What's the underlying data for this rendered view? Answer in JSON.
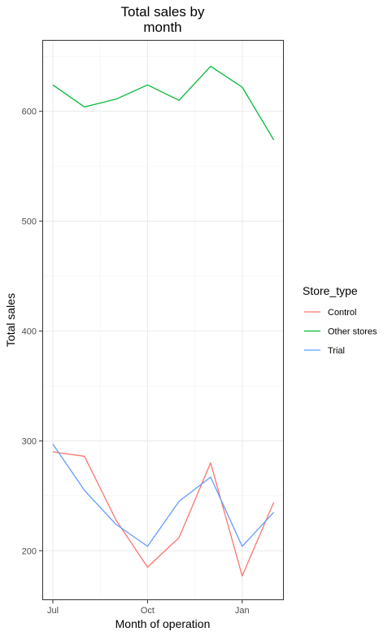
{
  "chart_data": {
    "type": "line",
    "title": [
      "Total sales by",
      "month"
    ],
    "xlabel": "Month of operation",
    "ylabel": "Total sales",
    "x": [
      "2018-07",
      "2018-08",
      "2018-09",
      "2018-10",
      "2018-11",
      "2018-12",
      "2019-01",
      "2019-02"
    ],
    "x_ticks": [
      {
        "label": "Jul",
        "value": "2018-07"
      },
      {
        "label": "Oct",
        "value": "2018-10"
      },
      {
        "label": "Jan",
        "value": "2019-01"
      }
    ],
    "y_ticks": [
      200,
      300,
      400,
      500,
      600
    ],
    "ylim": [
      155,
      665
    ],
    "grid": true,
    "legend": {
      "title": "Store_type",
      "position": "right"
    },
    "series": [
      {
        "name": "Control",
        "color": "#f8766d",
        "values": [
          290,
          286,
          228,
          185,
          212,
          280,
          177,
          244
        ]
      },
      {
        "name": "Other stores",
        "color": "#00ba38",
        "values": [
          624,
          604,
          611,
          624,
          610,
          641,
          622,
          574
        ]
      },
      {
        "name": "Trial",
        "color": "#619cff",
        "values": [
          297,
          255,
          224,
          204,
          245,
          267,
          204,
          235
        ]
      }
    ]
  }
}
